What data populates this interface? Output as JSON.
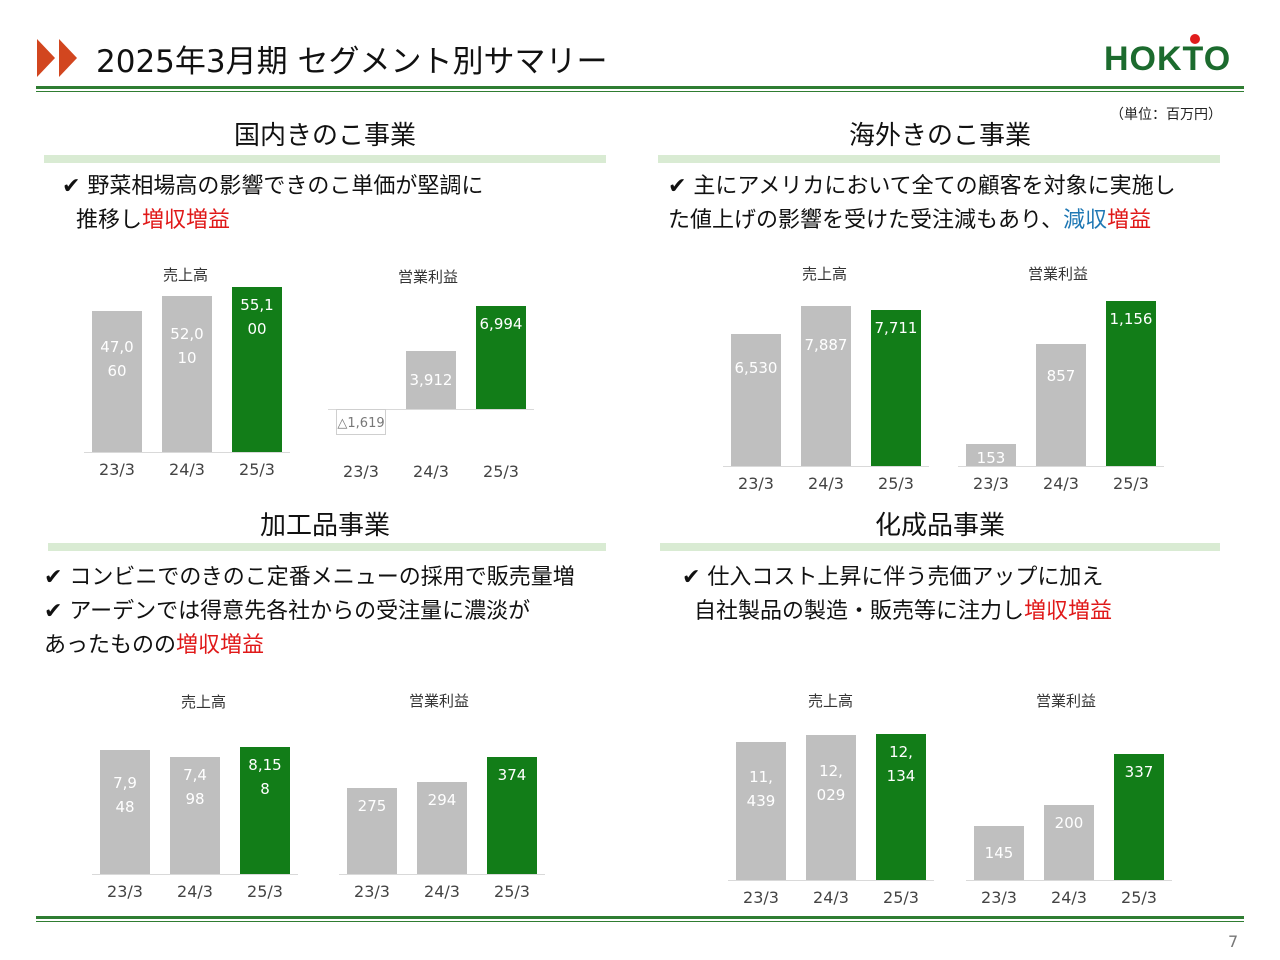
{
  "header": {
    "title": "2025年3月期 セグメント別サマリー",
    "logo_text": "HOKTO",
    "unit": "（単位：百万円）"
  },
  "segments": [
    {
      "heading": "国内きのこ事業",
      "desc_line1": "✔ 野菜相場高の影響できのこ単価が堅調に",
      "desc_line2_pre": "推移し",
      "desc_line2_hl": "増収増益"
    },
    {
      "heading": "海外きのこ事業",
      "desc_line1": "✔ 主にアメリカにおいて全ての顧客を対象に実施し",
      "desc_line2_pre": "た値上げの影響を受けた受注減もあり、",
      "desc_hl_blue": "減収",
      "desc_hl_red": "増益"
    },
    {
      "heading": "加工品事業",
      "desc_line1": "✔ コンビニでのきのこ定番メニューの採用で販売量増",
      "desc_line2": "✔ アーデンでは得意先各社からの受注量に濃淡が",
      "desc_line3_pre": "あったものの",
      "desc_line3_hl": "増収増益"
    },
    {
      "heading": "化成品事業",
      "desc_line1": "✔ 仕入コスト上昇に伴う売価アップに加え",
      "desc_line2_pre": "自社製品の製造・販売等に注力し",
      "desc_line2_hl": "増収増益"
    }
  ],
  "colors": {
    "accent_red": "#e01818",
    "accent_blue": "#1f78b4",
    "bar_green": "#127d18",
    "bar_gray": "#bfbfbf",
    "rule_green": "#2f7d32"
  },
  "chart_data": [
    {
      "type": "bar",
      "title": "売上高",
      "segment": "国内きのこ事業",
      "categories": [
        "23/3",
        "24/3",
        "25/3"
      ],
      "values": [
        47060,
        52010,
        55100
      ],
      "labels": [
        "47,060",
        "52,010",
        "55,100"
      ]
    },
    {
      "type": "bar",
      "title": "営業利益",
      "segment": "国内きのこ事業",
      "categories": [
        "23/3",
        "24/3",
        "25/3"
      ],
      "values": [
        -1619,
        3912,
        6994
      ],
      "labels": [
        "△1,619",
        "3,912",
        "6,994"
      ]
    },
    {
      "type": "bar",
      "title": "売上高",
      "segment": "海外きのこ事業",
      "categories": [
        "23/3",
        "24/3",
        "25/3"
      ],
      "values": [
        6530,
        7887,
        7711
      ],
      "labels": [
        "6,530",
        "7,887",
        "7,711"
      ]
    },
    {
      "type": "bar",
      "title": "営業利益",
      "segment": "海外きのこ事業",
      "categories": [
        "23/3",
        "24/3",
        "25/3"
      ],
      "values": [
        153,
        857,
        1156
      ],
      "labels": [
        "153",
        "857",
        "1,156"
      ]
    },
    {
      "type": "bar",
      "title": "売上高",
      "segment": "加工品事業",
      "categories": [
        "23/3",
        "24/3",
        "25/3"
      ],
      "values": [
        7948,
        7498,
        8158
      ],
      "labels": [
        "7,948",
        "7,498",
        "8,158"
      ]
    },
    {
      "type": "bar",
      "title": "営業利益",
      "segment": "加工品事業",
      "categories": [
        "23/3",
        "24/3",
        "25/3"
      ],
      "values": [
        275,
        294,
        374
      ],
      "labels": [
        "275",
        "294",
        "374"
      ]
    },
    {
      "type": "bar",
      "title": "売上高",
      "segment": "化成品事業",
      "categories": [
        "23/3",
        "24/3",
        "25/3"
      ],
      "values": [
        11439,
        12029,
        12134
      ],
      "labels": [
        "11,439",
        "12,029",
        "12,134"
      ]
    },
    {
      "type": "bar",
      "title": "営業利益",
      "segment": "化成品事業",
      "categories": [
        "23/3",
        "24/3",
        "25/3"
      ],
      "values": [
        145,
        200,
        337
      ],
      "labels": [
        "145",
        "200",
        "337"
      ]
    }
  ],
  "footer": {
    "page_number": "7"
  }
}
